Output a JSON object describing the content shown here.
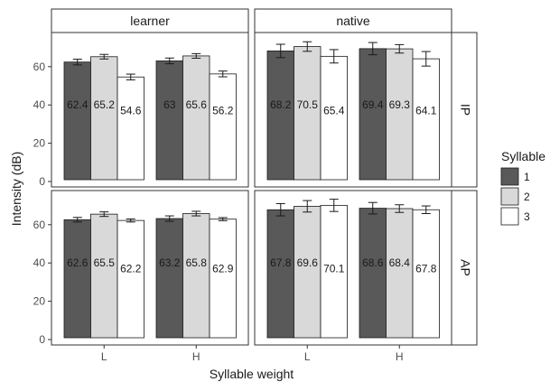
{
  "chart_data": {
    "type": "bar",
    "facet_columns": [
      "learner",
      "native"
    ],
    "facet_rows": [
      "IP",
      "AP"
    ],
    "categories": [
      "L",
      "H"
    ],
    "xlabel": "Syllable weight",
    "ylabel": "Intensity (dB)",
    "ylim": [
      0,
      75
    ],
    "yticks": [
      0,
      20,
      40,
      60
    ],
    "grid": false,
    "legend": {
      "title": "Syllable",
      "placement": "right",
      "entries": [
        "1",
        "2",
        "3"
      ],
      "colors": [
        "#595959",
        "#d9d9d9",
        "#ffffff"
      ]
    },
    "panels": [
      {
        "column": "learner",
        "row": "IP",
        "series": [
          {
            "name": "1",
            "values": [
              62.4,
              63
            ],
            "labels": [
              "62.4",
              "63"
            ],
            "errors": [
              1.5,
              1.5
            ]
          },
          {
            "name": "2",
            "values": [
              65.2,
              65.6
            ],
            "labels": [
              "65.2",
              "65.6"
            ],
            "errors": [
              1.2,
              1.2
            ]
          },
          {
            "name": "3",
            "values": [
              54.6,
              56.2
            ],
            "labels": [
              "54.6",
              "56.2"
            ],
            "errors": [
              1.5,
              1.5
            ]
          }
        ]
      },
      {
        "column": "native",
        "row": "IP",
        "series": [
          {
            "name": "1",
            "values": [
              68.2,
              69.4
            ],
            "labels": [
              "68.2",
              "69.4"
            ],
            "errors": [
              3.5,
              3.2
            ]
          },
          {
            "name": "2",
            "values": [
              70.5,
              69.3
            ],
            "labels": [
              "70.5",
              "69.3"
            ],
            "errors": [
              2.5,
              2.2
            ]
          },
          {
            "name": "3",
            "values": [
              65.4,
              64.1
            ],
            "labels": [
              "65.4",
              "64.1"
            ],
            "errors": [
              3.5,
              3.8
            ]
          }
        ]
      },
      {
        "column": "learner",
        "row": "AP",
        "series": [
          {
            "name": "1",
            "values": [
              62.6,
              63.2
            ],
            "labels": [
              "62.6",
              "63.2"
            ],
            "errors": [
              1.2,
              1.4
            ]
          },
          {
            "name": "2",
            "values": [
              65.5,
              65.8
            ],
            "labels": [
              "65.5",
              "65.8"
            ],
            "errors": [
              1.2,
              1.2
            ]
          },
          {
            "name": "3",
            "values": [
              62.2,
              62.9
            ],
            "labels": [
              "62.2",
              "62.9"
            ],
            "errors": [
              0.8,
              0.8
            ]
          }
        ]
      },
      {
        "column": "native",
        "row": "AP",
        "series": [
          {
            "name": "1",
            "values": [
              67.8,
              68.6
            ],
            "labels": [
              "67.8",
              "68.6"
            ],
            "errors": [
              3.2,
              3.0
            ]
          },
          {
            "name": "2",
            "values": [
              69.6,
              68.4
            ],
            "labels": [
              "69.6",
              "68.4"
            ],
            "errors": [
              3.0,
              2.0
            ]
          },
          {
            "name": "3",
            "values": [
              70.1,
              67.8
            ],
            "labels": [
              "70.1",
              "67.8"
            ],
            "errors": [
              3.2,
              2.0
            ]
          }
        ]
      }
    ]
  }
}
